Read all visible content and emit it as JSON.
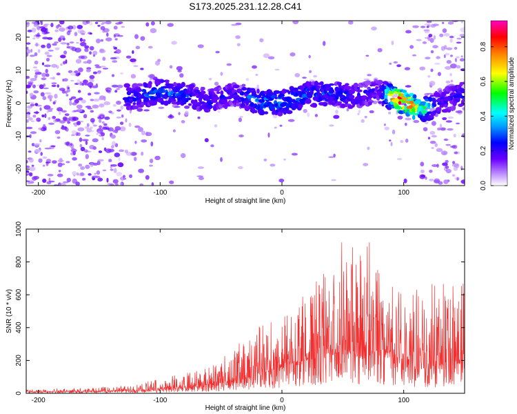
{
  "title": "S173.2025.231.12.28.C41",
  "chart_data": [
    {
      "type": "heatmap",
      "ylabel": "Frequency (Hz)",
      "xlabel": "Height of straight line (km)",
      "xlim": [
        -210,
        150
      ],
      "ylim": [
        -25,
        25
      ],
      "xticks": [
        -200,
        -100,
        0,
        100
      ],
      "yticks": [
        -20,
        -10,
        0,
        10,
        20
      ],
      "colorbar": {
        "label": "Normalized spectral amplitude",
        "range": [
          0,
          0.95
        ],
        "ticks": [
          0.0,
          0.2,
          0.4,
          0.6,
          0.8
        ],
        "tick_labels": [
          "0.0",
          "0.2",
          "0.4",
          "0.6",
          "0.8"
        ]
      },
      "ridge": [
        {
          "x": -120,
          "f": 2.0,
          "amp": 0.2
        },
        {
          "x": -100,
          "f": 3.5,
          "amp": 0.3
        },
        {
          "x": -80,
          "f": 2.5,
          "amp": 0.22
        },
        {
          "x": -60,
          "f": 0.5,
          "amp": 0.18
        },
        {
          "x": -40,
          "f": 3.0,
          "amp": 0.15
        },
        {
          "x": -20,
          "f": 0.5,
          "amp": 0.32
        },
        {
          "x": 0,
          "f": 0.0,
          "amp": 0.28
        },
        {
          "x": 20,
          "f": 2.5,
          "amp": 0.26
        },
        {
          "x": 40,
          "f": 3.0,
          "amp": 0.22
        },
        {
          "x": 60,
          "f": 2.0,
          "amp": 0.18
        },
        {
          "x": 80,
          "f": 3.5,
          "amp": 0.15
        },
        {
          "x": 95,
          "f": 1.0,
          "amp": 0.85
        },
        {
          "x": 105,
          "f": -0.5,
          "amp": 0.78
        },
        {
          "x": 115,
          "f": -2.0,
          "amp": 0.5
        },
        {
          "x": 130,
          "f": 0.0,
          "amp": 0.15
        },
        {
          "x": 148,
          "f": 3.0,
          "amp": 0.2
        }
      ]
    },
    {
      "type": "line",
      "ylabel": "SNR (10 * v/v)",
      "xlabel": "Height of straight line (km)",
      "xlim": [
        -210,
        150
      ],
      "ylim": [
        0,
        1000
      ],
      "xticks": [
        -200,
        -100,
        0,
        100
      ],
      "yticks": [
        0,
        200,
        400,
        600,
        800,
        1000
      ],
      "color": "#f03030",
      "envelope": {
        "x": [
          -210,
          -150,
          -120,
          -100,
          -80,
          -60,
          -40,
          -20,
          0,
          20,
          40,
          50,
          60,
          75,
          80,
          90,
          100,
          105,
          110,
          120,
          130,
          140,
          150
        ],
        "peak": [
          25,
          35,
          55,
          90,
          130,
          170,
          270,
          420,
          480,
          620,
          780,
          950,
          880,
          1000,
          860,
          660,
          600,
          480,
          860,
          640,
          740,
          720,
          700
        ],
        "base": [
          8,
          10,
          15,
          25,
          35,
          50,
          70,
          110,
          160,
          200,
          230,
          240,
          250,
          260,
          260,
          240,
          230,
          200,
          140,
          160,
          170,
          180,
          180
        ]
      }
    }
  ]
}
